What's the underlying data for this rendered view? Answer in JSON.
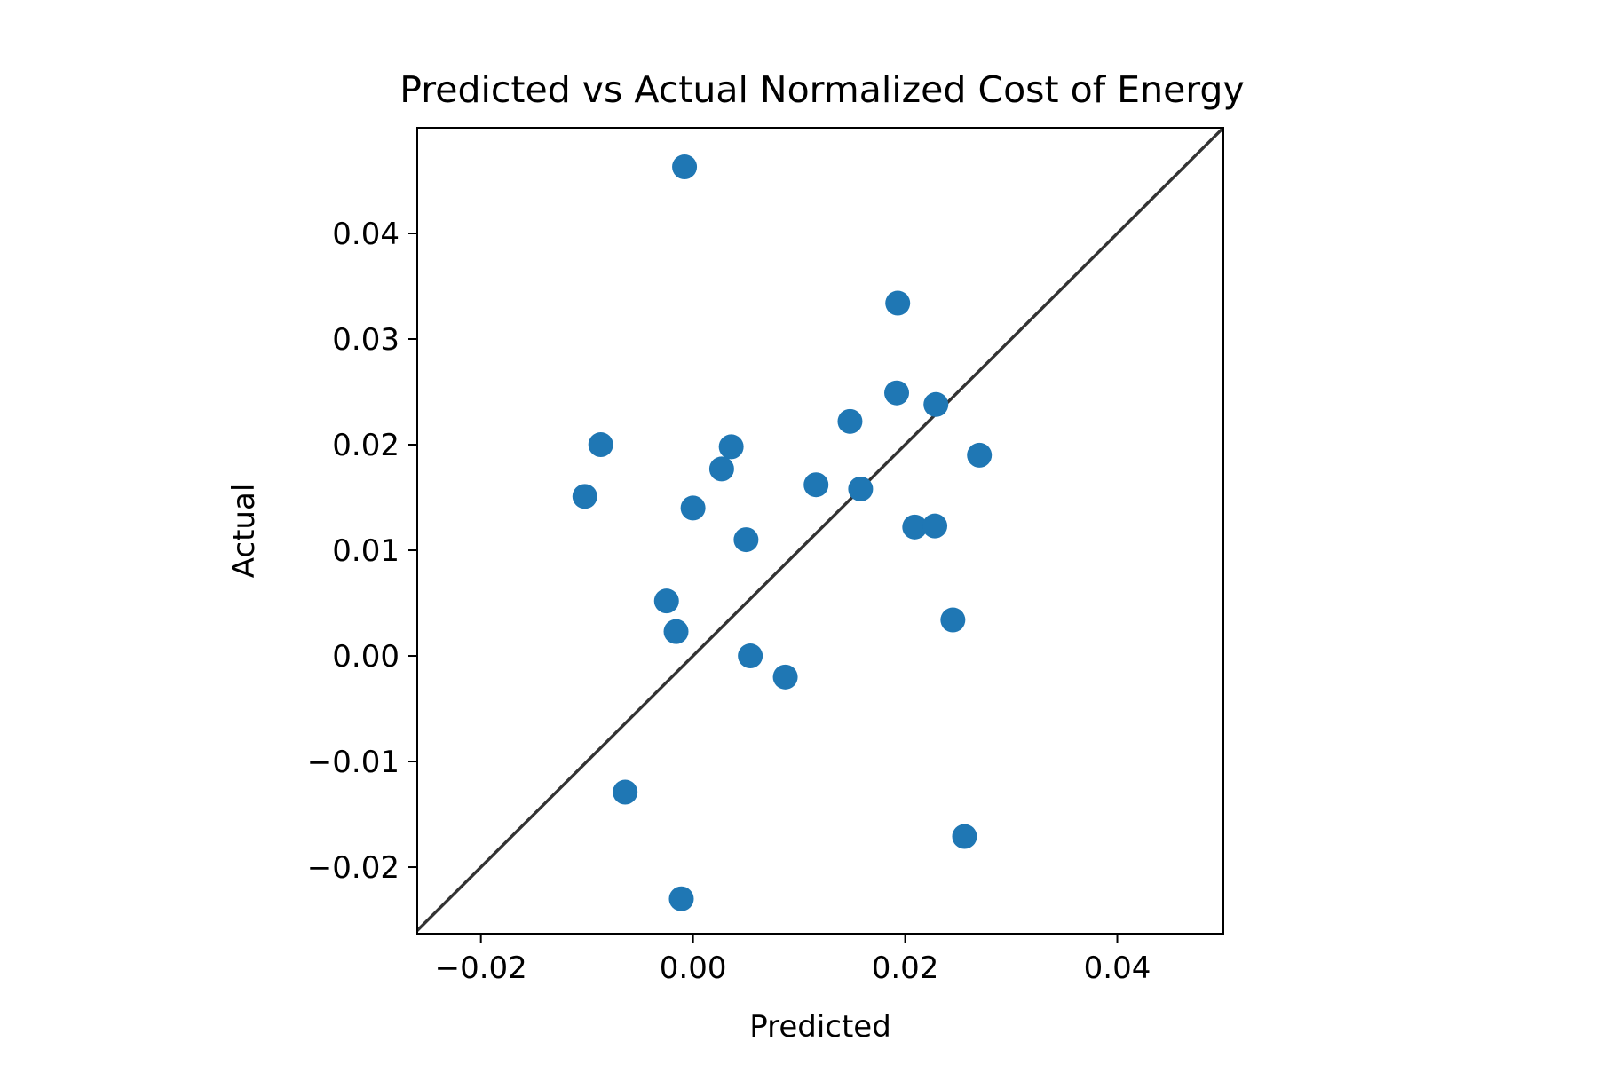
{
  "chart_data": {
    "type": "scatter",
    "title": "Predicted vs Actual Normalized Cost of Energy",
    "xlabel": "Predicted",
    "ylabel": "Actual",
    "xlim": [
      -0.026,
      0.05
    ],
    "ylim": [
      -0.0263,
      0.05
    ],
    "xticks": [
      {
        "value": -0.02,
        "label": "−0.02"
      },
      {
        "value": 0.0,
        "label": "0.00"
      },
      {
        "value": 0.02,
        "label": "0.02"
      },
      {
        "value": 0.04,
        "label": "0.04"
      }
    ],
    "yticks": [
      {
        "value": -0.02,
        "label": "−0.02"
      },
      {
        "value": -0.01,
        "label": "−0.01"
      },
      {
        "value": 0.0,
        "label": "0.00"
      },
      {
        "value": 0.01,
        "label": "0.01"
      },
      {
        "value": 0.02,
        "label": "0.02"
      },
      {
        "value": 0.03,
        "label": "0.03"
      },
      {
        "value": 0.04,
        "label": "0.04"
      }
    ],
    "grid": false,
    "legend": "none",
    "reference_line": {
      "type": "identity",
      "color": "#333333"
    },
    "point_color": "#1f77b4",
    "points": [
      {
        "x": -0.0008,
        "y": 0.0463
      },
      {
        "x": 0.0193,
        "y": 0.0334
      },
      {
        "x": 0.0192,
        "y": 0.0249
      },
      {
        "x": 0.0229,
        "y": 0.0238
      },
      {
        "x": 0.0148,
        "y": 0.0222
      },
      {
        "x": -0.0087,
        "y": 0.02
      },
      {
        "x": 0.0036,
        "y": 0.0198
      },
      {
        "x": 0.027,
        "y": 0.019
      },
      {
        "x": 0.0027,
        "y": 0.0177
      },
      {
        "x": 0.0116,
        "y": 0.0162
      },
      {
        "x": 0.0158,
        "y": 0.0158
      },
      {
        "x": -0.0102,
        "y": 0.0151
      },
      {
        "x": 0.0,
        "y": 0.014
      },
      {
        "x": 0.0209,
        "y": 0.0122
      },
      {
        "x": 0.0228,
        "y": 0.0123
      },
      {
        "x": 0.005,
        "y": 0.011
      },
      {
        "x": -0.0025,
        "y": 0.0052
      },
      {
        "x": -0.0016,
        "y": 0.0023
      },
      {
        "x": 0.0245,
        "y": 0.0034
      },
      {
        "x": 0.0054,
        "y": 0.0
      },
      {
        "x": 0.0087,
        "y": -0.002
      },
      {
        "x": -0.0064,
        "y": -0.0129
      },
      {
        "x": 0.0256,
        "y": -0.0171
      },
      {
        "x": -0.0011,
        "y": -0.023
      }
    ]
  }
}
